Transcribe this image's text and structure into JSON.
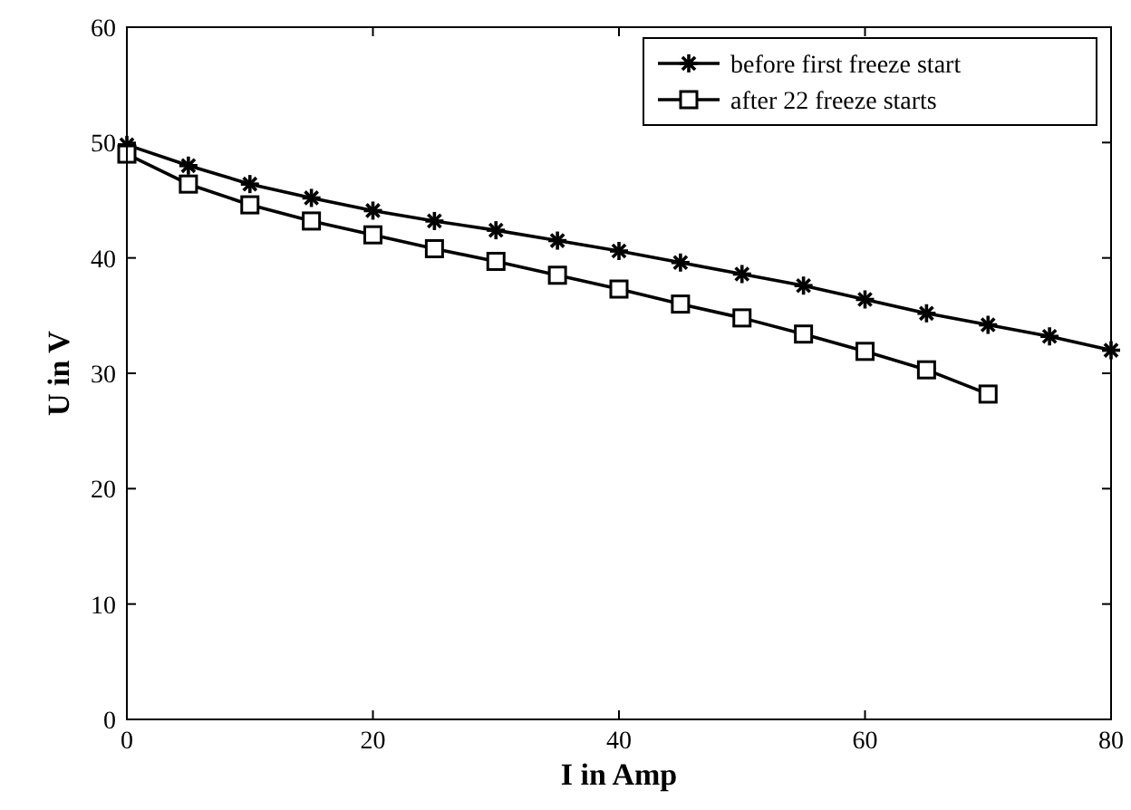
{
  "chart_data": {
    "type": "line",
    "xlabel": "I in Amp",
    "ylabel": "U in V",
    "xlim": [
      0,
      80
    ],
    "ylim": [
      0,
      60
    ],
    "xticks": [
      0,
      20,
      40,
      60,
      80
    ],
    "yticks": [
      0,
      10,
      20,
      30,
      40,
      50,
      60
    ],
    "legend": "top right",
    "grid": false,
    "series": [
      {
        "name": "before first freeze start",
        "color": "#000000",
        "marker": "cross",
        "x": [
          0,
          5,
          10,
          15,
          20,
          25,
          30,
          35,
          40,
          45,
          50,
          55,
          60,
          65,
          70,
          75,
          80
        ],
        "values": [
          49.8,
          48,
          46.4,
          45.2,
          44.1,
          43.2,
          42.4,
          41.5,
          40.6,
          39.6,
          38.6,
          37.6,
          36.4,
          35.2,
          34.2,
          33.2,
          32.0
        ]
      },
      {
        "name": "after 22 freeze starts",
        "color": "#000000",
        "marker": "square",
        "x": [
          0,
          5,
          10,
          15,
          20,
          25,
          30,
          35,
          40,
          45,
          50,
          55,
          60,
          65,
          70
        ],
        "values": [
          49,
          46.4,
          44.6,
          43.2,
          42.0,
          40.8,
          39.7,
          38.5,
          37.3,
          36.0,
          34.8,
          33.4,
          31.9,
          30.3,
          28.2
        ]
      }
    ]
  }
}
